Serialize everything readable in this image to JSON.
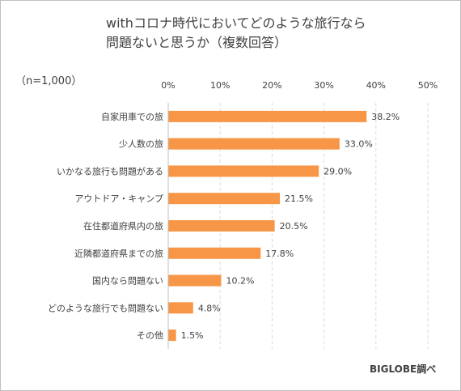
{
  "title_line1": "withコロナ時代においてどのような旅行なら",
  "title_line2": "問題ないと思うか（複数回答）",
  "sample_size": "（n=1,000）",
  "source": "BIGLOBE調べ",
  "chart_data": {
    "type": "bar",
    "orientation": "horizontal",
    "categories": [
      "自家用車での旅",
      "少人数の旅",
      "いかなる旅行も問題がある",
      "アウトドア・キャンプ",
      "在住都道府県内の旅",
      "近隣都道府県までの旅",
      "国内なら問題ない",
      "どのような旅行でも問題ない",
      "その他"
    ],
    "values": [
      38.2,
      33.0,
      29.0,
      21.5,
      20.5,
      17.8,
      10.2,
      4.8,
      1.5
    ],
    "value_labels": [
      "38.2%",
      "33.0%",
      "29.0%",
      "21.5%",
      "20.5%",
      "17.8%",
      "10.2%",
      "4.8%",
      "1.5%"
    ],
    "xlim": [
      0,
      50
    ],
    "ticks": [
      "0%",
      "10%",
      "20%",
      "30%",
      "40%",
      "50%"
    ],
    "tick_values": [
      0,
      10,
      20,
      30,
      40,
      50
    ],
    "grid": true,
    "grid_style": "dashed vertical",
    "bar_color": "#f79646",
    "axis_position": "top"
  }
}
